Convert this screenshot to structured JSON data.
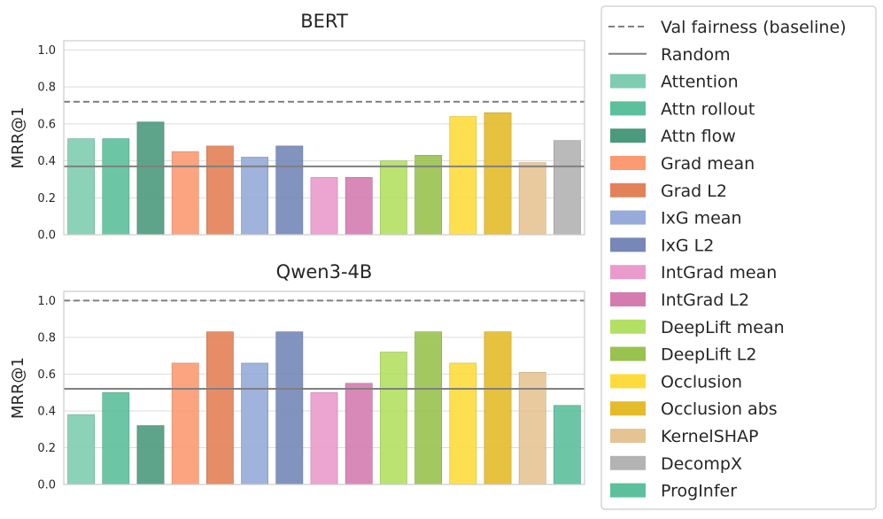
{
  "chart_data": [
    {
      "type": "bar",
      "title": "BERT",
      "xlabel": "",
      "ylabel": "MRR@1",
      "ylim": [
        0,
        1.05
      ],
      "yticks": [
        "0.0",
        "0.2",
        "0.4",
        "0.6",
        "0.8",
        "1.0"
      ],
      "grid": true,
      "categories": [
        "Attention",
        "Attn rollout",
        "Attn flow",
        "Grad mean",
        "Grad L2",
        "IxG mean",
        "IxG L2",
        "IntGrad mean",
        "IntGrad L2",
        "DeepLift mean",
        "DeepLift L2",
        "Occlusion",
        "Occlusion abs",
        "KernelSHAP",
        "DecompX"
      ],
      "values": [
        0.52,
        0.52,
        0.61,
        0.45,
        0.48,
        0.42,
        0.48,
        0.31,
        0.31,
        0.4,
        0.43,
        0.64,
        0.66,
        0.39,
        0.51
      ],
      "val_fairness_baseline": 0.72,
      "random": 0.37
    },
    {
      "type": "bar",
      "title": "Qwen3-4B",
      "xlabel": "",
      "ylabel": "MRR@1",
      "ylim": [
        0,
        1.05
      ],
      "yticks": [
        "0.0",
        "0.2",
        "0.4",
        "0.6",
        "0.8",
        "1.0"
      ],
      "grid": true,
      "categories": [
        "Attention",
        "Attn rollout",
        "Attn flow",
        "Grad mean",
        "Grad L2",
        "IxG mean",
        "IxG L2",
        "IntGrad mean",
        "IntGrad L2",
        "DeepLift mean",
        "DeepLift L2",
        "Occlusion",
        "Occlusion abs",
        "KernelSHAP",
        "ProgInfer"
      ],
      "values": [
        0.38,
        0.5,
        0.32,
        0.66,
        0.83,
        0.66,
        0.83,
        0.5,
        0.55,
        0.72,
        0.83,
        0.66,
        0.83,
        0.61,
        0.43
      ],
      "val_fairness_baseline": 1.0,
      "random": 0.52
    }
  ],
  "legend": {
    "placement": "right",
    "entries": [
      {
        "label": "Val fairness (baseline)",
        "kind": "dashed-line",
        "color": "#808080"
      },
      {
        "label": "Random",
        "kind": "solid-line",
        "color": "#808080"
      },
      {
        "label": "Attention",
        "kind": "patch",
        "color": "#7fcdb1"
      },
      {
        "label": "Attn rollout",
        "kind": "patch",
        "color": "#5cc09c"
      },
      {
        "label": "Attn flow",
        "kind": "patch",
        "color": "#4c9a7e"
      },
      {
        "label": "Grad mean",
        "kind": "patch",
        "color": "#fc9a72"
      },
      {
        "label": "Grad L2",
        "kind": "patch",
        "color": "#e38158"
      },
      {
        "label": "IxG mean",
        "kind": "patch",
        "color": "#96abd9"
      },
      {
        "label": "IxG L2",
        "kind": "patch",
        "color": "#7687b8"
      },
      {
        "label": "IntGrad mean",
        "kind": "patch",
        "color": "#ea9bcc"
      },
      {
        "label": "IntGrad L2",
        "kind": "patch",
        "color": "#d47cb0"
      },
      {
        "label": "DeepLift mean",
        "kind": "patch",
        "color": "#b2e063"
      },
      {
        "label": "DeepLift L2",
        "kind": "patch",
        "color": "#99c24e"
      },
      {
        "label": "Occlusion",
        "kind": "patch",
        "color": "#fedb3c"
      },
      {
        "label": "Occlusion abs",
        "kind": "patch",
        "color": "#e4bb2a"
      },
      {
        "label": "KernelSHAP",
        "kind": "patch",
        "color": "#e5c494"
      },
      {
        "label": "DecompX",
        "kind": "patch",
        "color": "#b3b3b3"
      },
      {
        "label": "ProgInfer",
        "kind": "patch",
        "color": "#5cc09c"
      }
    ]
  }
}
